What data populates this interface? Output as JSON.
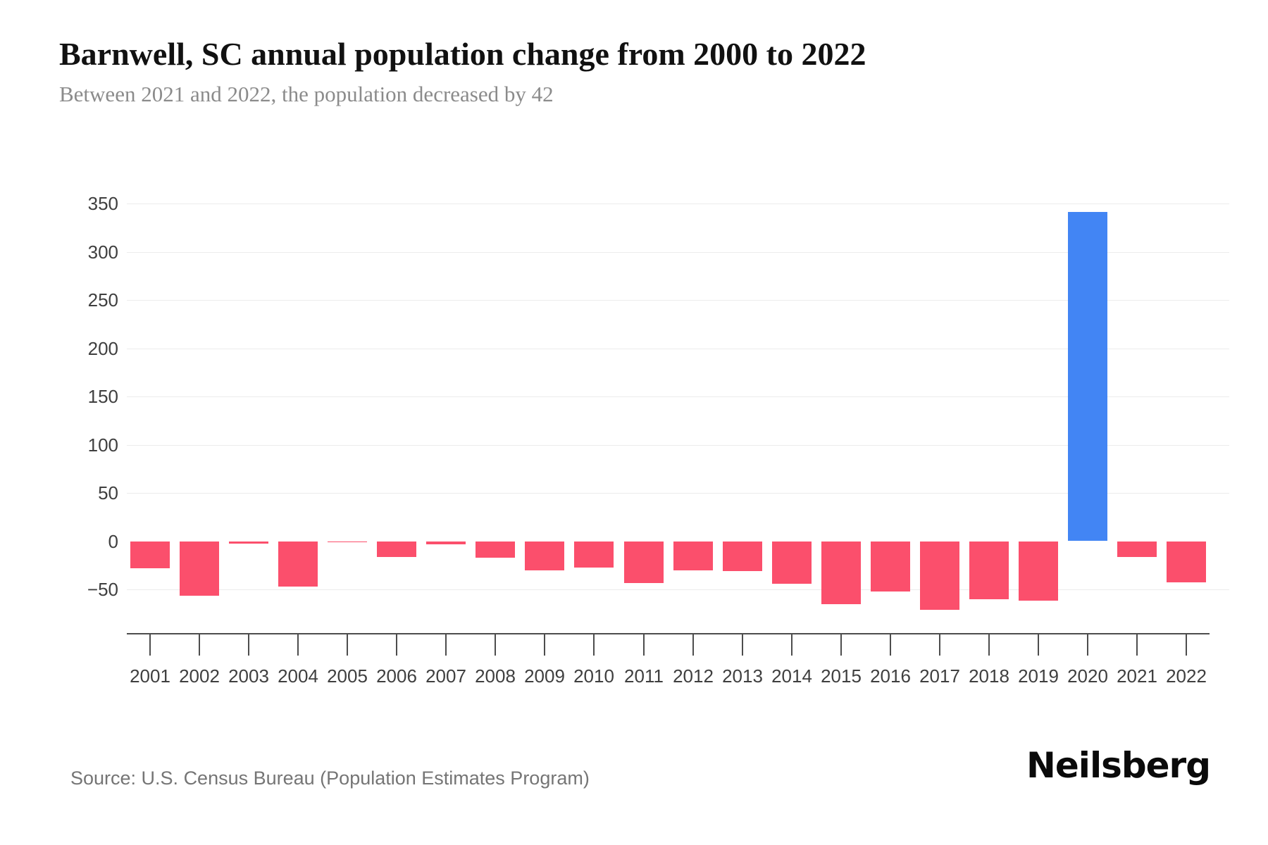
{
  "header": {
    "title": "Barnwell, SC annual population change from 2000 to 2022",
    "subtitle": "Between 2021 and 2022, the population decreased by 42"
  },
  "chart_data": {
    "type": "bar",
    "title": "Barnwell, SC annual population change from 2000 to 2022",
    "subtitle": "Between 2021 and 2022, the population decreased by 42",
    "xlabel": "",
    "ylabel": "",
    "categories": [
      "2001",
      "2002",
      "2003",
      "2004",
      "2005",
      "2006",
      "2007",
      "2008",
      "2009",
      "2010",
      "2011",
      "2012",
      "2013",
      "2014",
      "2015",
      "2016",
      "2017",
      "2018",
      "2019",
      "2020",
      "2021",
      "2022"
    ],
    "values": [
      -28,
      -56,
      -2,
      -47,
      -1,
      -16,
      -3,
      -17,
      -30,
      -27,
      -43,
      -30,
      -31,
      -44,
      -65,
      -52,
      -71,
      -60,
      -61,
      341,
      -16,
      -42
    ],
    "yticks": [
      {
        "value": 350,
        "label": "350"
      },
      {
        "value": 300,
        "label": "300"
      },
      {
        "value": 250,
        "label": "250"
      },
      {
        "value": 200,
        "label": "200"
      },
      {
        "value": 150,
        "label": "150"
      },
      {
        "value": 100,
        "label": "100"
      },
      {
        "value": 50,
        "label": "50"
      },
      {
        "value": 0,
        "label": "0"
      },
      {
        "value": -50,
        "label": "−50"
      }
    ],
    "ylim": [
      -95,
      350
    ],
    "grid": "horizontal gridlines at labeled ticks except 0",
    "legend": "none",
    "colors": {
      "negative_bar": "#fb4f6c",
      "positive_bar": "#4285f4",
      "gridline": "#ececec",
      "axis": "#4d4d4d",
      "tick_label": "#3f3f3f"
    }
  },
  "footer": {
    "source": "Source: U.S. Census Bureau (Population Estimates Program)",
    "brand": "Neilsberg"
  }
}
